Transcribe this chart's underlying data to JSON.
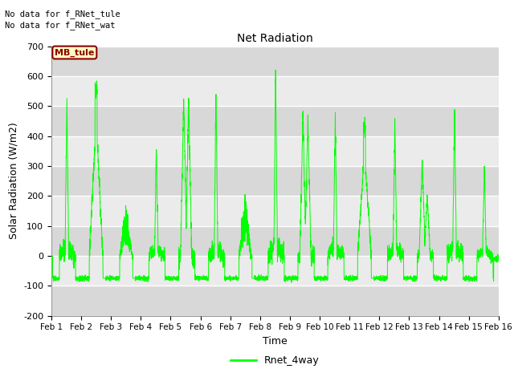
{
  "title": "Net Radiation",
  "xlabel": "Time",
  "ylabel": "Solar Radiation (W/m2)",
  "legend_label": "Rnet_4way",
  "line_color": "#00FF00",
  "background_color": "#FFFFFF",
  "plot_bg_color": "#EBEBEB",
  "ylim": [
    -200,
    700
  ],
  "yticks": [
    -200,
    -100,
    0,
    100,
    200,
    300,
    400,
    500,
    600,
    700
  ],
  "xtick_labels": [
    "Feb 1",
    "Feb 2",
    "Feb 3",
    "Feb 4",
    "Feb 5",
    "Feb 6",
    "Feb 7",
    "Feb 8",
    "Feb 9",
    "Feb 10",
    "Feb 11",
    "Feb 12",
    "Feb 13",
    "Feb 14",
    "Feb 15",
    "Feb 16"
  ],
  "annotation_text1": "No data for f_RNet_tule",
  "annotation_text2": "No data for f_RNet_wat",
  "mb_tule_label": "MB_tule",
  "figsize": [
    6.4,
    4.8
  ],
  "dpi": 100
}
